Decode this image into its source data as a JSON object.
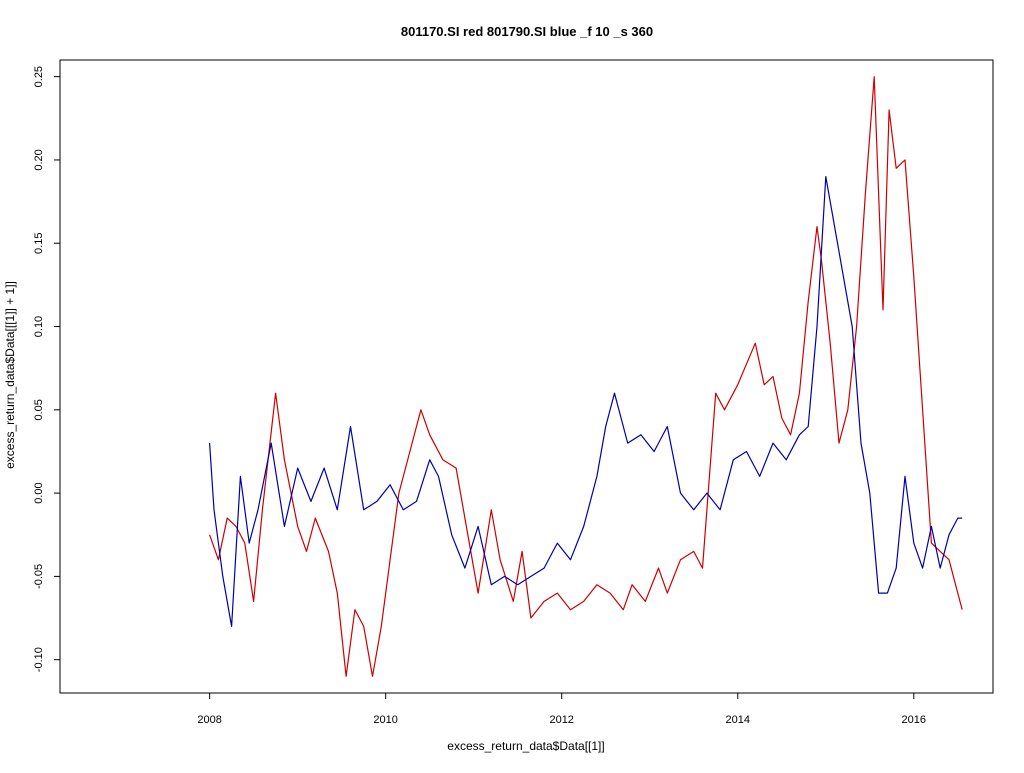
{
  "chart_data": {
    "type": "line",
    "title": "801170.SI red 801790.SI blue _f 10 _s 360",
    "xlabel": "excess_return_data$Data[[1]]",
    "ylabel": "excess_return_data$Data[[[1]] + 1]]",
    "xlim": [
      2006.3,
      2016.9
    ],
    "ylim": [
      -0.12,
      0.26
    ],
    "x_ticks": [
      2008,
      2010,
      2012,
      2014,
      2016
    ],
    "x_tick_labels": [
      "2008",
      "2010",
      "2012",
      "2014",
      "2016"
    ],
    "y_ticks": [
      -0.1,
      -0.05,
      0.0,
      0.05,
      0.1,
      0.15,
      0.2,
      0.25
    ],
    "y_tick_labels": [
      "-0.10",
      "-0.05",
      "0.00",
      "0.05",
      "0.10",
      "0.15",
      "0.20",
      "0.25"
    ],
    "grid": false,
    "series": [
      {
        "color": "#cc0000",
        "x": [
          2008.0,
          2008.1,
          2008.2,
          2008.3,
          2008.4,
          2008.5,
          2008.6,
          2008.75,
          2008.85,
          2009.0,
          2009.1,
          2009.2,
          2009.35,
          2009.45,
          2009.55,
          2009.65,
          2009.75,
          2009.85,
          2009.95,
          2010.05,
          2010.15,
          2010.3,
          2010.4,
          2010.5,
          2010.65,
          2010.8,
          2010.95,
          2011.05,
          2011.2,
          2011.3,
          2011.45,
          2011.55,
          2011.65,
          2011.8,
          2011.95,
          2012.1,
          2012.25,
          2012.4,
          2012.55,
          2012.7,
          2012.8,
          2012.95,
          2013.1,
          2013.2,
          2013.35,
          2013.5,
          2013.6,
          2013.75,
          2013.85,
          2014.0,
          2014.2,
          2014.3,
          2014.4,
          2014.5,
          2014.6,
          2014.7,
          2014.8,
          2014.9,
          2014.95,
          2015.05,
          2015.15,
          2015.25,
          2015.35,
          2015.45,
          2015.55,
          2015.65,
          2015.72,
          2015.8,
          2015.9,
          2016.0,
          2016.1,
          2016.2,
          2016.3,
          2016.4,
          2016.5,
          2016.55
        ],
        "y": [
          -0.025,
          -0.04,
          -0.015,
          -0.02,
          -0.03,
          -0.065,
          -0.01,
          0.06,
          0.02,
          -0.02,
          -0.035,
          -0.015,
          -0.035,
          -0.06,
          -0.11,
          -0.07,
          -0.08,
          -0.11,
          -0.08,
          -0.04,
          0.0,
          0.03,
          0.05,
          0.035,
          0.02,
          0.015,
          -0.03,
          -0.06,
          -0.01,
          -0.04,
          -0.065,
          -0.035,
          -0.075,
          -0.065,
          -0.06,
          -0.07,
          -0.065,
          -0.055,
          -0.06,
          -0.07,
          -0.055,
          -0.065,
          -0.045,
          -0.06,
          -0.04,
          -0.035,
          -0.045,
          0.06,
          0.05,
          0.065,
          0.09,
          0.065,
          0.07,
          0.045,
          0.035,
          0.06,
          0.115,
          0.16,
          0.14,
          0.09,
          0.03,
          0.05,
          0.1,
          0.18,
          0.25,
          0.11,
          0.23,
          0.195,
          0.2,
          0.13,
          0.05,
          -0.03,
          -0.035,
          -0.04,
          -0.06,
          -0.07
        ]
      },
      {
        "color": "#0000aa",
        "x": [
          2008.0,
          2008.05,
          2008.15,
          2008.25,
          2008.35,
          2008.45,
          2008.55,
          2008.7,
          2008.85,
          2009.0,
          2009.15,
          2009.3,
          2009.45,
          2009.6,
          2009.75,
          2009.9,
          2010.05,
          2010.2,
          2010.35,
          2010.5,
          2010.6,
          2010.75,
          2010.9,
          2011.05,
          2011.2,
          2011.35,
          2011.5,
          2011.65,
          2011.8,
          2011.95,
          2012.1,
          2012.25,
          2012.4,
          2012.5,
          2012.6,
          2012.75,
          2012.9,
          2013.05,
          2013.2,
          2013.35,
          2013.5,
          2013.65,
          2013.8,
          2013.95,
          2014.1,
          2014.25,
          2014.4,
          2014.55,
          2014.7,
          2014.8,
          2014.9,
          2015.0,
          2015.1,
          2015.2,
          2015.3,
          2015.4,
          2015.5,
          2015.6,
          2015.7,
          2015.8,
          2015.9,
          2016.0,
          2016.1,
          2016.2,
          2016.3,
          2016.4,
          2016.5,
          2016.55
        ],
        "y": [
          0.03,
          -0.01,
          -0.05,
          -0.08,
          0.01,
          -0.03,
          -0.01,
          0.03,
          -0.02,
          0.015,
          -0.005,
          0.015,
          -0.01,
          0.04,
          -0.01,
          -0.005,
          0.005,
          -0.01,
          -0.005,
          0.02,
          0.01,
          -0.025,
          -0.045,
          -0.02,
          -0.055,
          -0.05,
          -0.055,
          -0.05,
          -0.045,
          -0.03,
          -0.04,
          -0.02,
          0.01,
          0.04,
          0.06,
          0.03,
          0.035,
          0.025,
          0.04,
          0.0,
          -0.01,
          0.0,
          -0.01,
          0.02,
          0.025,
          0.01,
          0.03,
          0.02,
          0.035,
          0.04,
          0.1,
          0.19,
          0.16,
          0.13,
          0.1,
          0.03,
          0.0,
          -0.06,
          -0.06,
          -0.045,
          0.01,
          -0.03,
          -0.045,
          -0.02,
          -0.045,
          -0.025,
          -0.015,
          -0.015
        ]
      }
    ]
  }
}
